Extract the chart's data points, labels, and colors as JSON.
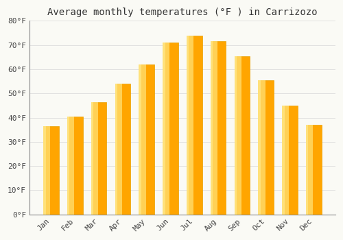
{
  "title": "Average monthly temperatures (°F ) in Carrizozo",
  "months": [
    "Jan",
    "Feb",
    "Mar",
    "Apr",
    "May",
    "Jun",
    "Jul",
    "Aug",
    "Sep",
    "Oct",
    "Nov",
    "Dec"
  ],
  "values": [
    36.5,
    40.5,
    46.5,
    54.0,
    62.0,
    71.0,
    74.0,
    71.5,
    65.5,
    55.5,
    45.0,
    37.0
  ],
  "bar_color_light": "#FFD966",
  "bar_color_dark": "#FFA500",
  "bar_color_mid": "#FFBB33",
  "background_color": "#FAFAF5",
  "grid_color": "#DDDDDD",
  "ylim": [
    0,
    80
  ],
  "yticks": [
    0,
    10,
    20,
    30,
    40,
    50,
    60,
    70,
    80
  ],
  "ytick_labels": [
    "0°F",
    "10°F",
    "20°F",
    "30°F",
    "40°F",
    "50°F",
    "60°F",
    "70°F",
    "80°F"
  ],
  "title_fontsize": 10,
  "tick_fontsize": 8,
  "font_family": "monospace",
  "bar_width": 0.65
}
